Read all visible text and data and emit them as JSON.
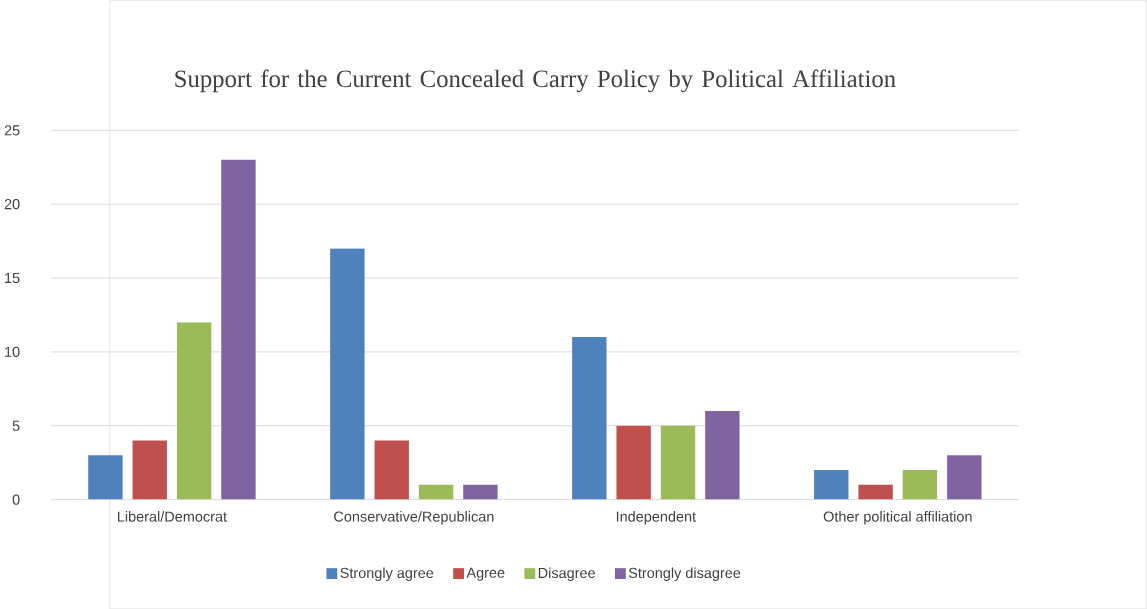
{
  "chart_data": {
    "type": "bar",
    "title": "Support for the Current Concealed Carry Policy by Political Affiliation",
    "categories": [
      "Liberal/Democrat",
      "Conservative/Republican",
      "Independent",
      "Other political affiliation"
    ],
    "series": [
      {
        "name": "Strongly agree",
        "color": "#4f81bd",
        "values": [
          3,
          17,
          11,
          2
        ]
      },
      {
        "name": "Agree",
        "color": "#c0504d",
        "values": [
          4,
          4,
          5,
          1
        ]
      },
      {
        "name": "Disagree",
        "color": "#9bbb59",
        "values": [
          12,
          1,
          5,
          2
        ]
      },
      {
        "name": "Strongly disagree",
        "color": "#8064a2",
        "values": [
          23,
          1,
          6,
          3
        ]
      }
    ],
    "ylim": [
      0,
      25
    ],
    "yticks": [
      0,
      5,
      10,
      15,
      20,
      25
    ],
    "grid": "y",
    "legend": "bottom"
  }
}
